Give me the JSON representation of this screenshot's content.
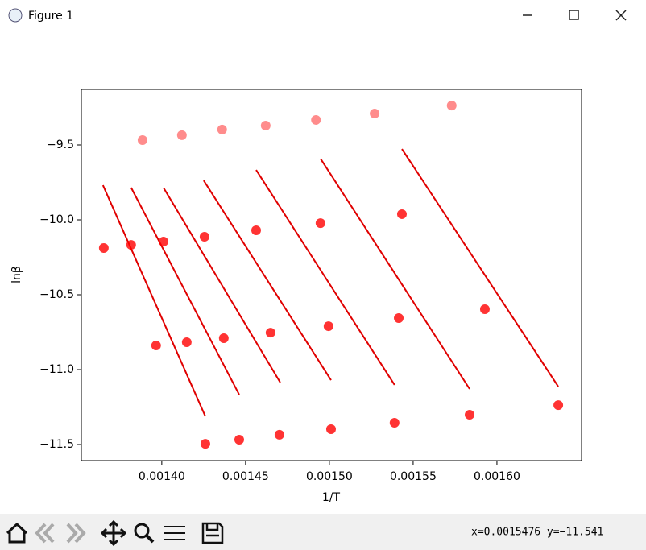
{
  "window": {
    "title": "Figure 1",
    "status": "x=0.0015476 y=−11.541"
  },
  "chart_data": {
    "type": "scatter",
    "xlabel": "1/T",
    "ylabel": "lnβ",
    "xlim": [
      0.001352,
      0.0016505
    ],
    "ylim": [
      -11.6075,
      -9.129
    ],
    "xticks": [
      {
        "value": 0.0014,
        "label": "0.00140"
      },
      {
        "value": 0.00145,
        "label": "0.00145"
      },
      {
        "value": 0.0015,
        "label": "0.00150"
      },
      {
        "value": 0.00155,
        "label": "0.00155"
      },
      {
        "value": 0.0016,
        "label": "0.00160"
      }
    ],
    "yticks": [
      {
        "value": -9.5,
        "label": "−9.5"
      },
      {
        "value": -10.0,
        "label": "−10.0"
      },
      {
        "value": -10.5,
        "label": "−10.5"
      },
      {
        "value": -11.0,
        "label": "−11.0"
      },
      {
        "value": -11.5,
        "label": "−11.5"
      }
    ],
    "series": [
      {
        "color": "#ff0000",
        "alpha": 0.45,
        "x": [
          0.0013885,
          0.001412,
          0.001436,
          0.001462,
          0.001492,
          0.001527,
          0.001573
        ],
        "values": [
          -9.468,
          -9.435,
          -9.397,
          -9.371,
          -9.333,
          -9.29,
          -9.237
        ]
      },
      {
        "color": "#ff0000",
        "alpha": 0.8,
        "x": [
          0.0013654,
          0.0013966,
          0.001426
        ],
        "values": [
          -10.188,
          -10.839,
          -11.495
        ]
      },
      {
        "color": "#ff0000",
        "alpha": 0.8,
        "x": [
          0.0013817,
          0.0014149,
          0.0014462
        ],
        "values": [
          -10.167,
          -10.817,
          -11.468
        ]
      },
      {
        "color": "#ff0000",
        "alpha": 0.8,
        "x": [
          0.001401,
          0.001437,
          0.0014702
        ],
        "values": [
          -10.145,
          -10.79,
          -11.435
        ]
      },
      {
        "color": "#ff0000",
        "alpha": 0.8,
        "x": [
          0.0014255,
          0.0014649,
          0.001501
        ],
        "values": [
          -10.113,
          -10.753,
          -11.398
        ]
      },
      {
        "color": "#ff0000",
        "alpha": 0.8,
        "x": [
          0.0014563,
          0.0014995,
          0.0015389
        ],
        "values": [
          -10.07,
          -10.71,
          -11.355
        ]
      },
      {
        "color": "#ff0000",
        "alpha": 0.8,
        "x": [
          0.0014947,
          0.0015414,
          0.0015837
        ],
        "values": [
          -10.022,
          -10.656,
          -11.301
        ]
      },
      {
        "color": "#ff0000",
        "alpha": 0.8,
        "x": [
          0.0015433,
          0.0015928,
          0.0016366
        ],
        "values": [
          -9.962,
          -10.597,
          -11.237
        ]
      }
    ],
    "lines": [
      {
        "color": "#e00000",
        "x": [
          0.0013649,
          0.001426
        ],
        "values": [
          -9.769,
          -11.312
        ]
      },
      {
        "color": "#e00000",
        "x": [
          0.0013817,
          0.0014462
        ],
        "values": [
          -9.785,
          -11.167
        ]
      },
      {
        "color": "#e00000",
        "x": [
          0.001401,
          0.0014707
        ],
        "values": [
          -9.785,
          -11.086
        ]
      },
      {
        "color": "#e00000",
        "x": [
          0.001425,
          0.001501
        ],
        "values": [
          -9.737,
          -11.07
        ]
      },
      {
        "color": "#e00000",
        "x": [
          0.0014563,
          0.0015389
        ],
        "values": [
          -9.667,
          -11.102
        ]
      },
      {
        "color": "#e00000",
        "x": [
          0.0014947,
          0.0015837
        ],
        "values": [
          -9.591,
          -11.129
        ]
      },
      {
        "color": "#e00000",
        "x": [
          0.0015433,
          0.0016366
        ],
        "values": [
          -9.527,
          -11.113
        ]
      }
    ]
  }
}
